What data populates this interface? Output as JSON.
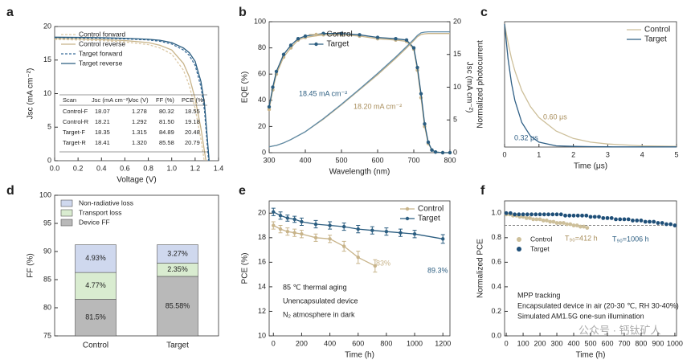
{
  "chart_data": [
    {
      "type": "line",
      "panel": "a",
      "xlabel": "Voltage (V)",
      "ylabel": "Jsc (mA cm⁻²)",
      "xlim": [
        0,
        1.4
      ],
      "xticks": [
        {
          "value": 0,
          "label": "0.0"
        },
        0.2,
        0.4,
        0.6,
        0.8,
        {
          "value": 1,
          "label": "1.0"
        },
        1.2,
        1.4
      ],
      "ylim": [
        0,
        20
      ],
      "yticks": [
        0,
        5,
        10,
        15,
        20
      ],
      "legend": "upper left",
      "series": [
        {
          "name": "Control forward",
          "color": "#dcc9a6",
          "dash": true,
          "x": [
            0,
            0.2,
            0.4,
            0.6,
            0.8,
            0.9,
            1.0,
            1.1,
            1.15,
            1.2,
            1.25,
            1.278
          ],
          "values": [
            18.07,
            18.0,
            17.9,
            17.7,
            17.3,
            16.8,
            15.9,
            13.5,
            11.2,
            7.8,
            3.2,
            0
          ]
        },
        {
          "name": "Control reverse",
          "color": "#c8b48a",
          "x": [
            0,
            0.2,
            0.4,
            0.6,
            0.8,
            0.9,
            1.0,
            1.1,
            1.15,
            1.2,
            1.25,
            1.292
          ],
          "values": [
            18.21,
            18.15,
            18.05,
            17.9,
            17.6,
            17.2,
            16.5,
            14.5,
            12.5,
            9.2,
            4.8,
            0
          ]
        },
        {
          "name": "Target forward",
          "color": "#3a6d9a",
          "dash": true,
          "x": [
            0,
            0.2,
            0.4,
            0.6,
            0.8,
            0.9,
            1.0,
            1.1,
            1.15,
            1.2,
            1.25,
            1.28,
            1.315
          ],
          "values": [
            18.35,
            18.3,
            18.25,
            18.15,
            18.0,
            17.8,
            17.4,
            16.5,
            15.7,
            14.2,
            11.0,
            7.5,
            0
          ]
        },
        {
          "name": "Target reverse",
          "color": "#2b5d80",
          "x": [
            0,
            0.2,
            0.4,
            0.6,
            0.8,
            0.9,
            1.0,
            1.1,
            1.15,
            1.2,
            1.25,
            1.28,
            1.32
          ],
          "values": [
            18.41,
            18.38,
            18.33,
            18.25,
            18.1,
            17.95,
            17.6,
            16.8,
            16.1,
            14.8,
            11.8,
            8.5,
            0
          ]
        }
      ],
      "table": {
        "header": [
          "Scan",
          "Jsc (mA cm⁻²)",
          "Voc (V)",
          "FF (%)",
          "PCE (%)"
        ],
        "rows": [
          [
            "Control-F",
            "18.07",
            "1.278",
            "80.32",
            "18.55"
          ],
          [
            "Control-R",
            "18.21",
            "1.292",
            "81.50",
            "19.18"
          ],
          [
            "Target-F",
            "18.35",
            "1.315",
            "84.89",
            "20.48"
          ],
          [
            "Target-R",
            "18.41",
            "1.320",
            "85.58",
            "20.79"
          ]
        ]
      }
    },
    {
      "type": "line",
      "panel": "b",
      "xlabel": "Wavelength (nm)",
      "ylabel": "EQE (%)",
      "y2label": "Jsc (mA cm⁻²)",
      "xlim": [
        300,
        800
      ],
      "xticks": [
        300,
        400,
        500,
        600,
        700,
        800
      ],
      "ylim": [
        0,
        100
      ],
      "yticks": [
        0,
        20,
        40,
        60,
        80,
        100
      ],
      "y2lim": [
        0,
        20
      ],
      "y2ticks": [
        0,
        5,
        10,
        15,
        20
      ],
      "legend": "upper center",
      "x": [
        300,
        310,
        320,
        340,
        360,
        380,
        400,
        450,
        500,
        550,
        600,
        650,
        680,
        700,
        710,
        720,
        730,
        740,
        750,
        760,
        780,
        800
      ],
      "series": [
        {
          "name": "Control",
          "color": "#c8b48a",
          "markers": true,
          "values": [
            33,
            48,
            60,
            73,
            80,
            86,
            88,
            90,
            90,
            89,
            87,
            86,
            85,
            79,
            63,
            42,
            20,
            7,
            2,
            0.5,
            0,
            0
          ]
        },
        {
          "name": "Target",
          "color": "#2b5d80",
          "markers": true,
          "values": [
            35,
            50,
            62,
            75,
            82,
            87,
            89,
            91,
            91,
            90,
            88,
            87,
            86,
            80,
            65,
            45,
            22,
            8,
            2,
            0.5,
            0,
            0
          ]
        },
        {
          "color": "#c8b48a",
          "axis": "y2",
          "values": [
            0.9,
            1.0,
            1.1,
            1.5,
            2.0,
            2.6,
            3.2,
            5.1,
            7.3,
            9.6,
            11.9,
            14.4,
            16.0,
            17.1,
            17.7,
            18.05,
            18.15,
            18.2,
            18.2,
            18.2,
            18.2,
            18.2
          ]
        },
        {
          "color": "#5d8aa8",
          "axis": "y2",
          "values": [
            0.9,
            1.0,
            1.1,
            1.5,
            2.0,
            2.6,
            3.2,
            5.2,
            7.4,
            9.7,
            12.1,
            14.6,
            16.2,
            17.3,
            17.9,
            18.3,
            18.4,
            18.45,
            18.45,
            18.45,
            18.45,
            18.45
          ]
        }
      ],
      "annotations": [
        "18.45 mA cm⁻²",
        "18.20 mA cm⁻²"
      ]
    },
    {
      "type": "line",
      "panel": "c",
      "xlabel": "Time (μs)",
      "ylabel": "Normalized photocurrent",
      "xlim": [
        0,
        5
      ],
      "xticks": [
        0,
        1,
        2,
        3,
        4,
        5
      ],
      "ylim": [
        0,
        1.02
      ],
      "legend": "upper right",
      "x": [
        0,
        0.1,
        0.2,
        0.3,
        0.5,
        0.75,
        1,
        1.5,
        2,
        2.5,
        3,
        4,
        5
      ],
      "series": [
        {
          "name": "Control",
          "color": "#cdbf9a",
          "values": [
            1,
            0.85,
            0.72,
            0.62,
            0.46,
            0.33,
            0.24,
            0.13,
            0.07,
            0.04,
            0.025,
            0.01,
            0.005
          ]
        },
        {
          "name": "Target",
          "color": "#2f5f85",
          "values": [
            1,
            0.72,
            0.52,
            0.38,
            0.2,
            0.09,
            0.04,
            0.01,
            0.005,
            0.003,
            0.002,
            0.001,
            0.001
          ]
        }
      ],
      "annotations": [
        "0.60 μs",
        "0.32 μs"
      ]
    },
    {
      "type": "bar",
      "panel": "d",
      "ylabel": "FF (%)",
      "categories": [
        "Control",
        "Target"
      ],
      "ylim": [
        75,
        100
      ],
      "yticks": [
        75,
        80,
        85,
        90,
        95,
        100
      ],
      "legend": "upper left",
      "series": [
        {
          "name": "Device FF",
          "color": "#b9b9b9",
          "values": [
            81.5,
            85.58
          ],
          "value_labels": [
            "81.5%",
            "85.58%"
          ]
        },
        {
          "name": "Transport loss",
          "color": "#d9ecd0",
          "values": [
            4.77,
            2.35
          ],
          "value_labels": [
            "4.77%",
            "2.35%"
          ]
        },
        {
          "name": "Non-radiative loss",
          "color": "#cfd8ee",
          "values": [
            4.93,
            3.27
          ],
          "value_labels": [
            "4.93%",
            "3.27%"
          ]
        }
      ]
    },
    {
      "type": "line",
      "panel": "e",
      "xlabel": "Time (h)",
      "ylabel": "PCE (%)",
      "xlim": [
        -30,
        1250
      ],
      "xticks": [
        0,
        200,
        400,
        600,
        800,
        1000,
        1200
      ],
      "ylim": [
        10,
        21
      ],
      "yticks": [
        10,
        12,
        14,
        16,
        18,
        20
      ],
      "legend": "upper right",
      "series": [
        {
          "name": "Control",
          "color": "#c8b48a",
          "markers": true,
          "x": [
            0,
            50,
            100,
            150,
            200,
            300,
            400,
            500,
            600,
            720
          ],
          "values": [
            19.0,
            18.7,
            18.5,
            18.4,
            18.3,
            18.0,
            17.9,
            17.3,
            16.4,
            15.7
          ],
          "errors": [
            0.3,
            0.3,
            0.3,
            0.3,
            0.3,
            0.3,
            0.3,
            0.4,
            0.5,
            0.5
          ]
        },
        {
          "name": "Target",
          "color": "#2b5d80",
          "markers": true,
          "x": [
            0,
            50,
            100,
            150,
            200,
            300,
            400,
            500,
            600,
            700,
            800,
            900,
            1000,
            1200
          ],
          "values": [
            20.1,
            19.8,
            19.6,
            19.5,
            19.3,
            19.1,
            19.0,
            18.9,
            18.7,
            18.6,
            18.5,
            18.4,
            18.3,
            17.9
          ],
          "errors": [
            0.3,
            0.3,
            0.25,
            0.25,
            0.3,
            0.3,
            0.3,
            0.3,
            0.3,
            0.3,
            0.3,
            0.3,
            0.3,
            0.35
          ]
        }
      ],
      "annotations": [
        "83%",
        "89.3%",
        "85 ℃ thermal aging",
        "Unencapsulated device",
        "N₂ atmosphere in dark"
      ]
    },
    {
      "type": "scatter",
      "panel": "f",
      "xlabel": "Time (h)",
      "ylabel": "Normalized PCE",
      "xlim": [
        -10,
        1010
      ],
      "xticks": [
        0,
        100,
        200,
        300,
        400,
        500,
        600,
        700,
        800,
        900,
        1000
      ],
      "ylim": [
        0,
        1.1
      ],
      "yticks": [
        {
          "value": 0,
          "label": "0.0"
        },
        0.2,
        0.4,
        0.6,
        0.8,
        {
          "value": 1,
          "label": "1.0"
        }
      ],
      "legend": "center left",
      "reference_line": 0.9,
      "series": [
        {
          "name": "Control",
          "color": "#cdbf9a",
          "x": [
            0,
            20,
            40,
            60,
            80,
            100,
            120,
            140,
            160,
            180,
            200,
            220,
            240,
            260,
            280,
            300,
            320,
            340,
            360,
            380,
            400,
            420,
            440,
            460,
            480
          ],
          "values": [
            0.99,
            0.99,
            0.98,
            0.98,
            0.97,
            0.97,
            0.96,
            0.96,
            0.95,
            0.95,
            0.95,
            0.94,
            0.94,
            0.93,
            0.93,
            0.92,
            0.92,
            0.92,
            0.91,
            0.91,
            0.9,
            0.9,
            0.89,
            0.89,
            0.88
          ]
        },
        {
          "name": "Target",
          "color": "#1f4f78",
          "x": [
            0,
            25,
            50,
            75,
            100,
            125,
            150,
            175,
            200,
            225,
            250,
            275,
            300,
            325,
            350,
            375,
            400,
            425,
            450,
            475,
            500,
            525,
            550,
            575,
            600,
            625,
            650,
            675,
            700,
            725,
            750,
            775,
            800,
            825,
            850,
            875,
            900,
            925,
            950,
            975,
            1000
          ],
          "values": [
            1.0,
            1.0,
            0.99,
            0.99,
            0.99,
            0.99,
            0.99,
            0.99,
            0.99,
            0.99,
            0.99,
            0.99,
            0.99,
            0.99,
            0.98,
            0.98,
            0.98,
            0.98,
            0.98,
            0.98,
            0.97,
            0.97,
            0.97,
            0.96,
            0.96,
            0.96,
            0.95,
            0.95,
            0.95,
            0.95,
            0.94,
            0.94,
            0.94,
            0.93,
            0.93,
            0.93,
            0.92,
            0.92,
            0.91,
            0.91,
            0.9
          ]
        }
      ],
      "annotations": [
        "T₉₀=412 h",
        "T₉₀=1006 h",
        "MPP tracking",
        "Encapsulated device in air (20-30 ℃, RH 30-40%)",
        "Simulated AM1.5G one-sun illumination"
      ]
    }
  ],
  "watermark": "公众号 · 钙钛矿人"
}
